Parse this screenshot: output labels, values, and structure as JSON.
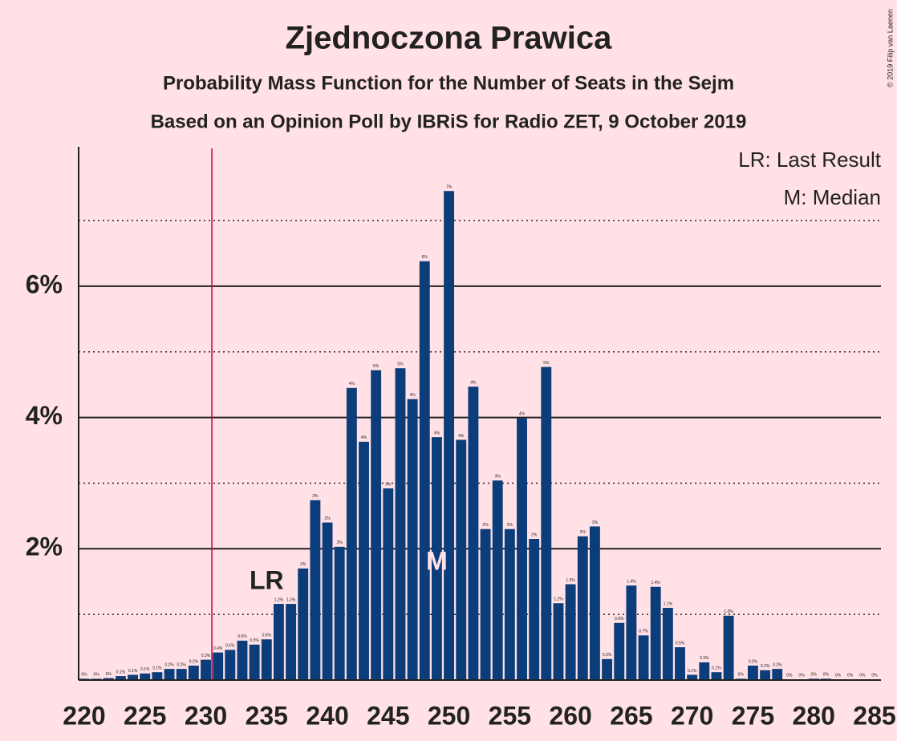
{
  "chart_data": {
    "type": "bar",
    "title": "Zjednoczona Prawica",
    "subtitle": "Probability Mass Function for the Number of Seats in the Sejm",
    "subtitle2": "Based on an Opinion Poll by IBRiS for Radio ZET, 9 October 2019",
    "credit": "© 2019 Filip van Laenen",
    "legend": [
      "LR: Last Result",
      "M: Median"
    ],
    "color": "#0b3d7b",
    "background": "#ffe1e6",
    "majority_line": 230.5,
    "majority_color": "#c2003c",
    "last_result": {
      "label": "LR",
      "x": 235
    },
    "median": {
      "label": "M",
      "x": 249
    },
    "x": [
      220,
      221,
      222,
      223,
      224,
      225,
      226,
      227,
      228,
      229,
      230,
      231,
      232,
      233,
      234,
      235,
      236,
      237,
      238,
      239,
      240,
      241,
      242,
      243,
      244,
      245,
      246,
      247,
      248,
      249,
      250,
      251,
      252,
      253,
      254,
      255,
      256,
      257,
      258,
      259,
      260,
      261,
      262,
      263,
      264,
      265,
      266,
      267,
      268,
      269,
      270,
      271,
      272,
      273,
      274,
      275,
      276,
      277,
      278,
      279,
      280,
      281,
      282,
      283,
      284,
      285
    ],
    "values": [
      0.02,
      0.02,
      0.03,
      0.06,
      0.08,
      0.1,
      0.12,
      0.17,
      0.17,
      0.22,
      0.31,
      0.42,
      0.46,
      0.6,
      0.54,
      0.62,
      1.16,
      1.16,
      1.7,
      2.74,
      2.4,
      2.03,
      4.45,
      3.63,
      4.72,
      2.92,
      4.75,
      4.28,
      6.38,
      3.7,
      7.45,
      3.66,
      4.47,
      2.3,
      3.04,
      2.3,
      3.99,
      2.15,
      4.77,
      1.17,
      1.46,
      2.19,
      2.34,
      0.32,
      0.87,
      1.44,
      0.68,
      1.42,
      1.1,
      0.5,
      0.08,
      0.27,
      0.12,
      0.98,
      0.02,
      0.22,
      0.15,
      0.17,
      0.01,
      0.01,
      0.02,
      0.02,
      0.01,
      0.01,
      0.01,
      0.01
    ],
    "value_labels": [
      "0%",
      "0%",
      "0%",
      "0.1%",
      "0.1%",
      "0.1%",
      "0.1%",
      "0.2%",
      "0.2%",
      "0.2%",
      "0.3%",
      "0.4%",
      "0.5%",
      "0.6%",
      "0.5%",
      "0.6%",
      "1.2%",
      "1.2%",
      "2%",
      "3%",
      "2%",
      "2%",
      "4%",
      "4%",
      "5%",
      "3%",
      "5%",
      "4%",
      "6%",
      "4%",
      "7%",
      "4%",
      "4%",
      "2%",
      "3%",
      "2%",
      "4%",
      "2%",
      "5%",
      "1.2%",
      "1.5%",
      "2%",
      "2%",
      "0.3%",
      "0.9%",
      "1.4%",
      "0.7%",
      "1.4%",
      "1.1%",
      "0.5%",
      "0.1%",
      "0.3%",
      "0.1%",
      "1.0%",
      "0%",
      "0.2%",
      "0.2%",
      "0.2%",
      "0%",
      "0%",
      "0%",
      "0%",
      "0%",
      "0%",
      "0%",
      "0%"
    ],
    "xlim": [
      219.54,
      285.53
    ],
    "xticks": [
      220,
      225,
      230,
      235,
      240,
      245,
      250,
      255,
      260,
      265,
      270,
      275,
      280,
      285
    ],
    "ylim": [
      0,
      8.1
    ],
    "yticks": [
      {
        "value": 2,
        "label": "2%"
      },
      {
        "value": 4,
        "label": "4%"
      },
      {
        "value": 6,
        "label": "6%"
      }
    ],
    "minor_yticks": [
      1,
      3,
      5,
      7
    ]
  }
}
